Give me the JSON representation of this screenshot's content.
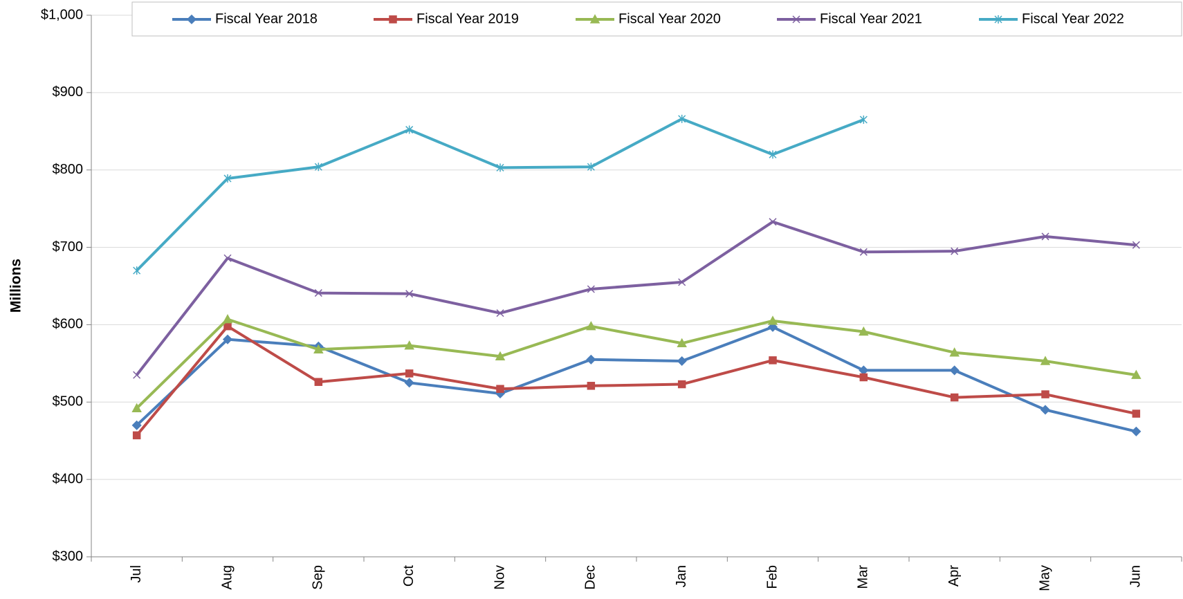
{
  "chart_data": {
    "type": "line",
    "y_label": "Millions",
    "categories": [
      "Jul",
      "Aug",
      "Sep",
      "Oct",
      "Nov",
      "Dec",
      "Jan",
      "Feb",
      "Mar",
      "Apr",
      "May",
      "Jun"
    ],
    "series": [
      {
        "name": "Fiscal Year 2018",
        "color": "#4a7ebb",
        "marker": "diamond",
        "values": [
          470,
          581,
          572,
          525,
          511,
          555,
          553,
          597,
          541,
          541,
          490,
          462
        ]
      },
      {
        "name": "Fiscal Year 2019",
        "color": "#be4b48",
        "marker": "square",
        "values": [
          457,
          598,
          526,
          537,
          517,
          521,
          523,
          554,
          532,
          506,
          510,
          485
        ]
      },
      {
        "name": "Fiscal Year 2020",
        "color": "#98b954",
        "marker": "triangle",
        "values": [
          492,
          607,
          568,
          573,
          559,
          598,
          576,
          605,
          591,
          564,
          553,
          535
        ]
      },
      {
        "name": "Fiscal Year 2021",
        "color": "#7d60a0",
        "marker": "x",
        "values": [
          535,
          686,
          641,
          640,
          615,
          646,
          655,
          733,
          694,
          695,
          714,
          703
        ]
      },
      {
        "name": "Fiscal Year 2022",
        "color": "#46aac5",
        "marker": "star",
        "values": [
          670,
          789,
          804,
          852,
          803,
          804,
          866,
          820,
          865,
          null,
          null,
          null
        ]
      }
    ],
    "ylim": [
      300,
      1000
    ],
    "yticks": [
      {
        "value": 300,
        "label": "$300"
      },
      {
        "value": 400,
        "label": "$400"
      },
      {
        "value": 500,
        "label": "$500"
      },
      {
        "value": 600,
        "label": "$600"
      },
      {
        "value": 700,
        "label": "$700"
      },
      {
        "value": 800,
        "label": "$800"
      },
      {
        "value": 900,
        "label": "$900"
      },
      {
        "value": 1000,
        "label": "$1,000"
      }
    ],
    "grid": true,
    "legend": "top"
  }
}
